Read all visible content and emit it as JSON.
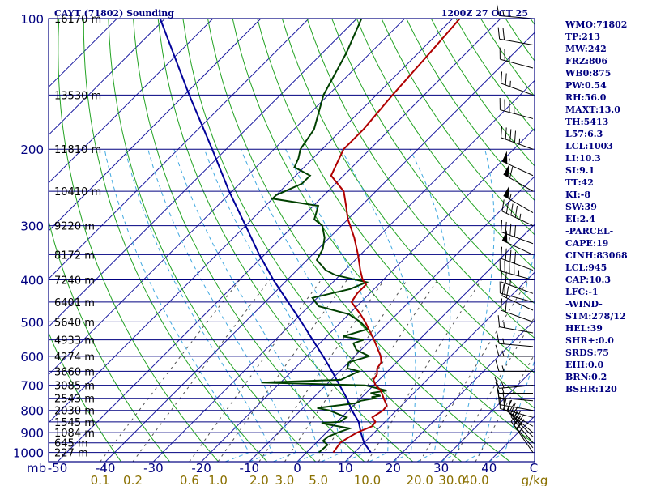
{
  "header": {
    "station": "CAYT (71802) Sounding",
    "time": "1200Z 27 OCT 25"
  },
  "indices": [
    "WMO:71802",
    "TP:213",
    "MW:242",
    "FRZ:806",
    "WB0:875",
    "PW:0.54",
    "RH:56.0",
    "MAXT:13.0",
    "TH:5413",
    "L57:6.3",
    "LCL:1003",
    "LI:10.3",
    "SI:9.1",
    "TT:42",
    "KI:-8",
    "SW:39",
    "EI:2.4",
    "-PARCEL-",
    "CAPE:19",
    "CINH:83068",
    "LCL:945",
    "CAP:10.3",
    "LFC:-1",
    "-WIND-",
    "STM:278/12",
    "HEL:39",
    "SHR+:0.0",
    "SRDS:75",
    "EHI:0.0",
    "BRN:0.2",
    "BSHR:120"
  ],
  "colors": {
    "isobar": "#000080",
    "frame": "#000080",
    "temperature": "#b00000",
    "dewpoint": "#004000",
    "parcel": "#000099",
    "isotherm": "#1a1aa0",
    "dry_adiabat": "#23a323",
    "moist_adiabat": "#40a8e0",
    "mixing_ratio": "#505050",
    "wind_barb": "#000000"
  },
  "chart_data": {
    "type": "skew-t",
    "pressure_axis_label": "mb",
    "mixing_ratio_unit": "g/kg",
    "pressure_levels": [
      100,
      200,
      300,
      400,
      500,
      600,
      700,
      800,
      900,
      1000
    ],
    "height_levels": [
      {
        "p": 100,
        "label": "16170 m"
      },
      {
        "p": 150,
        "label": "13530 m"
      },
      {
        "p": 200,
        "label": "11810 m"
      },
      {
        "p": 250,
        "label": "10410 m"
      },
      {
        "p": 300,
        "label": "9220 m"
      },
      {
        "p": 350,
        "label": "8172 m"
      },
      {
        "p": 400,
        "label": "7240 m"
      },
      {
        "p": 450,
        "label": "6401 m"
      },
      {
        "p": 500,
        "label": "5640 m"
      },
      {
        "p": 550,
        "label": "4933 m"
      },
      {
        "p": 600,
        "label": "4274 m"
      },
      {
        "p": 650,
        "label": "3660 m"
      },
      {
        "p": 700,
        "label": "3085 m"
      },
      {
        "p": 750,
        "label": "2543 m"
      },
      {
        "p": 800,
        "label": "2030 m"
      },
      {
        "p": 850,
        "label": "1545 m"
      },
      {
        "p": 900,
        "label": "1084 m"
      },
      {
        "p": 950,
        "label": "645 m"
      },
      {
        "p": 1000,
        "label": "227 m"
      }
    ],
    "temperature_ticks": [
      -50,
      -40,
      -30,
      -20,
      -10,
      0,
      10,
      20,
      30,
      40
    ],
    "mixing_ratio_ticks": [
      "0.1",
      "0.2",
      "0.6",
      "1.0",
      "2.0",
      "3.0",
      "5.0",
      "10.0",
      "20.0",
      "30.0",
      "40.0"
    ],
    "mixing_ratio_values": [
      0.1,
      0.2,
      0.6,
      1.0,
      2.0,
      3.0,
      5.0,
      10.0,
      20.0,
      30.0,
      40.0
    ],
    "temperature": [
      [
        1000,
        5.6
      ],
      [
        950,
        5.0
      ],
      [
        925,
        5.6
      ],
      [
        900,
        6.4
      ],
      [
        870,
        8.2
      ],
      [
        850,
        8.0
      ],
      [
        830,
        6.4
      ],
      [
        800,
        7.2
      ],
      [
        780,
        7.0
      ],
      [
        750,
        4.8
      ],
      [
        720,
        2.6
      ],
      [
        700,
        0.4
      ],
      [
        680,
        -1.2
      ],
      [
        660,
        -1.6
      ],
      [
        640,
        -2.8
      ],
      [
        620,
        -3.2
      ],
      [
        600,
        -4.6
      ],
      [
        550,
        -9.4
      ],
      [
        500,
        -15.0
      ],
      [
        480,
        -17.6
      ],
      [
        450,
        -22.0
      ],
      [
        430,
        -22.6
      ],
      [
        410,
        -22.6
      ],
      [
        400,
        -24.3
      ],
      [
        380,
        -26.8
      ],
      [
        350,
        -30.5
      ],
      [
        320,
        -34.8
      ],
      [
        300,
        -38.2
      ],
      [
        290,
        -40.0
      ],
      [
        270,
        -43.2
      ],
      [
        250,
        -46.7
      ],
      [
        230,
        -52.6
      ],
      [
        210,
        -54.5
      ],
      [
        200,
        -55.5
      ],
      [
        180,
        -55.5
      ],
      [
        150,
        -56.6
      ],
      [
        120,
        -57.6
      ],
      [
        100,
        -58.5
      ]
    ],
    "dewpoint": [
      [
        1000,
        2.6
      ],
      [
        960,
        2.8
      ],
      [
        940,
        1.0
      ],
      [
        920,
        1.2
      ],
      [
        900,
        2.4
      ],
      [
        880,
        4.0
      ],
      [
        860,
        -1.8
      ],
      [
        855,
        -3.0
      ],
      [
        850,
        0.6
      ],
      [
        830,
        1.0
      ],
      [
        800,
        -4.0
      ],
      [
        790,
        -7.0
      ],
      [
        770,
        0.0
      ],
      [
        760,
        0.5
      ],
      [
        750,
        3.0
      ],
      [
        745,
        2.0
      ],
      [
        740,
        3.6
      ],
      [
        730,
        1.0
      ],
      [
        720,
        3.8
      ],
      [
        700,
        -1.8
      ],
      [
        690,
        -24.0
      ],
      [
        680,
        -8.0
      ],
      [
        650,
        -6.0
      ],
      [
        640,
        -9.0
      ],
      [
        620,
        -10.0
      ],
      [
        600,
        -7.0
      ],
      [
        580,
        -11.0
      ],
      [
        560,
        -13.0
      ],
      [
        550,
        -11.6
      ],
      [
        540,
        -16.6
      ],
      [
        520,
        -13.0
      ],
      [
        500,
        -16.0
      ],
      [
        480,
        -20.0
      ],
      [
        460,
        -28.0
      ],
      [
        440,
        -31.0
      ],
      [
        420,
        -25.0
      ],
      [
        405,
        -23.0
      ],
      [
        390,
        -31.0
      ],
      [
        380,
        -34.0
      ],
      [
        360,
        -38.0
      ],
      [
        340,
        -39.0
      ],
      [
        320,
        -41.0
      ],
      [
        300,
        -44.0
      ],
      [
        290,
        -47.0
      ],
      [
        270,
        -49.0
      ],
      [
        260,
        -60.0
      ],
      [
        255,
        -60.0
      ],
      [
        250,
        -59.0
      ],
      [
        240,
        -57.0
      ],
      [
        230,
        -57.0
      ],
      [
        220,
        -62.0
      ],
      [
        210,
        -63.0
      ],
      [
        200,
        -64.5
      ],
      [
        180,
        -65.8
      ],
      [
        150,
        -71.0
      ],
      [
        120,
        -75.0
      ],
      [
        100,
        -79.0
      ]
    ],
    "parcel": [
      [
        1000,
        13.4
      ],
      [
        950,
        10.0
      ],
      [
        900,
        7.2
      ],
      [
        850,
        4.5
      ],
      [
        800,
        0.7
      ],
      [
        750,
        -2.9
      ],
      [
        700,
        -7.1
      ],
      [
        650,
        -11.6
      ],
      [
        600,
        -16.6
      ],
      [
        550,
        -22.2
      ],
      [
        500,
        -28.3
      ],
      [
        450,
        -35.2
      ],
      [
        400,
        -42.9
      ],
      [
        350,
        -51.1
      ],
      [
        300,
        -60.0
      ],
      [
        250,
        -70.6
      ],
      [
        200,
        -82.9
      ],
      [
        150,
        -99.0
      ],
      [
        100,
        -121.0
      ]
    ],
    "winds": [
      [
        100,
        275,
        15
      ],
      [
        115,
        280,
        20
      ],
      [
        130,
        285,
        25
      ],
      [
        150,
        290,
        25
      ],
      [
        170,
        285,
        35
      ],
      [
        200,
        290,
        45
      ],
      [
        230,
        295,
        55
      ],
      [
        250,
        300,
        60
      ],
      [
        280,
        300,
        55
      ],
      [
        300,
        295,
        45
      ],
      [
        330,
        290,
        40
      ],
      [
        350,
        295,
        55
      ],
      [
        380,
        290,
        40
      ],
      [
        400,
        285,
        45
      ],
      [
        430,
        290,
        25
      ],
      [
        450,
        285,
        20
      ],
      [
        470,
        295,
        20
      ],
      [
        500,
        290,
        20
      ],
      [
        530,
        280,
        15
      ],
      [
        570,
        275,
        15
      ],
      [
        600,
        270,
        15
      ],
      [
        650,
        270,
        15
      ],
      [
        700,
        265,
        15
      ],
      [
        730,
        270,
        15
      ],
      [
        760,
        275,
        15
      ],
      [
        800,
        280,
        15
      ],
      [
        830,
        285,
        20
      ],
      [
        870,
        300,
        20
      ],
      [
        900,
        310,
        25
      ],
      [
        920,
        315,
        25
      ],
      [
        950,
        320,
        30
      ],
      [
        975,
        320,
        30
      ],
      [
        1000,
        325,
        25
      ]
    ]
  }
}
